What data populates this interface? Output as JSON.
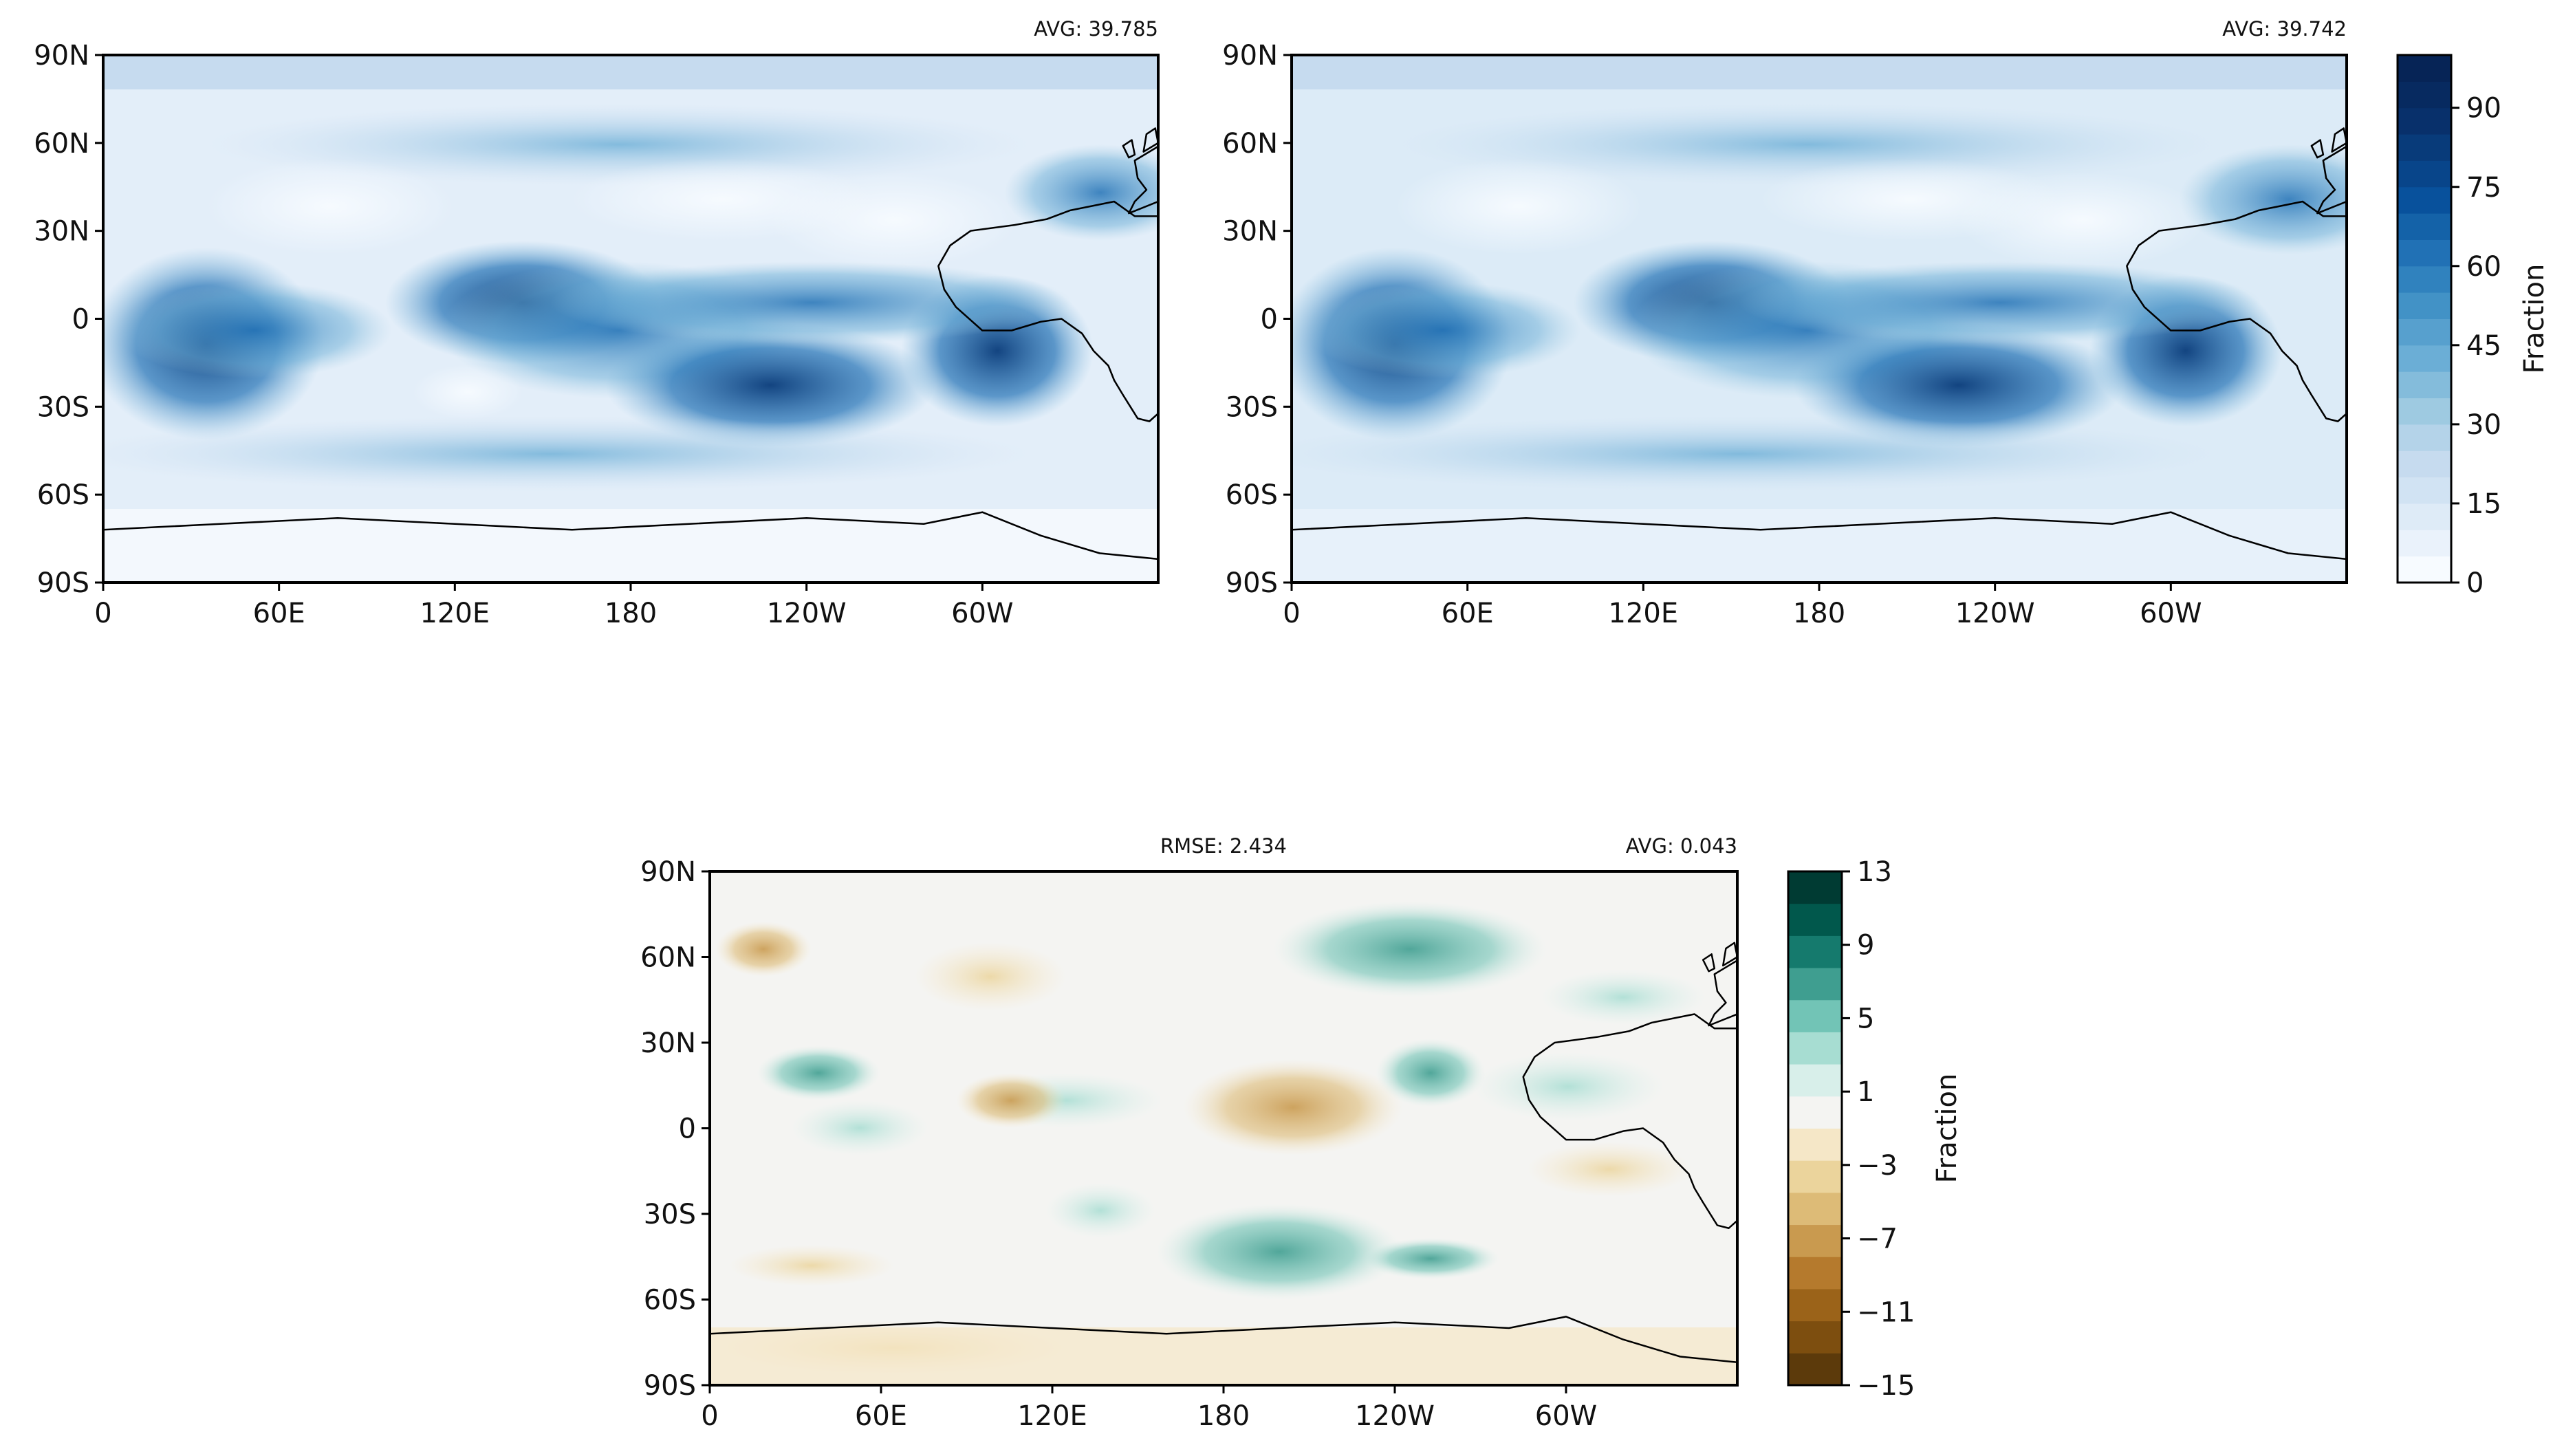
{
  "map_panels": [
    {
      "id": "top-left",
      "avg_label": "AVG: 39.785",
      "lat_ticks": [
        "90N",
        "60N",
        "30N",
        "0",
        "30S",
        "60S",
        "90S"
      ],
      "lon_ticks": [
        "0",
        "60E",
        "120E",
        "180",
        "120W",
        "60W"
      ],
      "colormap": "blues"
    },
    {
      "id": "top-right",
      "avg_label": "AVG: 39.742",
      "lat_ticks": [
        "90N",
        "60N",
        "30N",
        "0",
        "30S",
        "60S",
        "90S"
      ],
      "lon_ticks": [
        "0",
        "60E",
        "120E",
        "180",
        "120W",
        "60W"
      ],
      "colormap": "blues"
    },
    {
      "id": "bottom-diff",
      "rmse_label": "RMSE: 2.434",
      "avg_label": "AVG: 0.043",
      "lat_ticks": [
        "90N",
        "60N",
        "30N",
        "0",
        "30S",
        "60S",
        "90S"
      ],
      "lon_ticks": [
        "0",
        "60E",
        "120E",
        "180",
        "120W",
        "60W"
      ],
      "colormap": "brown-teal diverging"
    }
  ],
  "colorbars": {
    "top": {
      "label": "Fraction",
      "tick_labels": [
        "0",
        "15",
        "30",
        "45",
        "60",
        "75",
        "90"
      ],
      "range": [
        0,
        100
      ],
      "levels": 20,
      "colors": [
        "#f7fbff",
        "#eaf2fb",
        "#deebf7",
        "#d1e3f3",
        "#c6dbef",
        "#b4d3e9",
        "#9ecae1",
        "#84bcdb",
        "#6baed6",
        "#57a0ce",
        "#4292c6",
        "#3082be",
        "#2171b5",
        "#1462a8",
        "#08519c",
        "#08458a",
        "#083b7a",
        "#08306b",
        "#072a60",
        "#062456"
      ]
    },
    "bottom": {
      "label": "Fraction",
      "tick_labels": [
        "13",
        "9",
        "5",
        "1",
        "−3",
        "−7",
        "−11",
        "−15"
      ],
      "range": [
        -15,
        13
      ],
      "colors": [
        "#5c3a0b",
        "#7d4e0f",
        "#9b6319",
        "#b57a2d",
        "#c99a4f",
        "#ddbb77",
        "#ebd49c",
        "#f5e7c7",
        "#f4f4f2",
        "#d8efea",
        "#a7ddd2",
        "#72c4b6",
        "#3f9e90",
        "#157a6d",
        "#01584c",
        "#003b33"
      ]
    }
  },
  "colors": {
    "avg_label_color": "#111111",
    "frame": "#000000"
  }
}
